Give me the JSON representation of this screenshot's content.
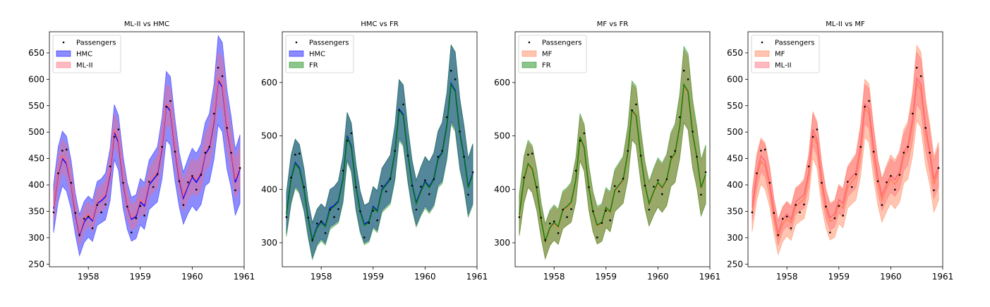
{
  "colors": {
    "HMC": "#0000ff",
    "ML-II": "#ff6675",
    "FR": "#008000",
    "MF": "#ff7f50",
    "points": "#000000"
  },
  "chart_data": [
    {
      "type": "line",
      "title": "ML-II vs HMC",
      "xlim": [
        1957.25,
        1961
      ],
      "ylim": [
        245,
        690
      ],
      "xticks": [
        "1958",
        "1959",
        "1960",
        "1961"
      ],
      "yticks": [
        "250",
        "300",
        "350",
        "400",
        "450",
        "500",
        "550",
        "600",
        "650"
      ],
      "legend": {
        "position": "top-left",
        "entries": [
          "Passengers",
          "HMC",
          "ML-II"
        ]
      },
      "series": [
        {
          "name": "HMC",
          "band_scale": 1.3
        },
        {
          "name": "ML-II",
          "band_scale": 0.75
        }
      ]
    },
    {
      "type": "line",
      "title": "HMC vs FR",
      "xlim": [
        1957.25,
        1961
      ],
      "ylim": [
        255,
        695
      ],
      "xticks": [
        "1958",
        "1959",
        "1960",
        "1961"
      ],
      "yticks": [
        "300",
        "400",
        "500",
        "600"
      ],
      "legend": {
        "position": "top-left",
        "entries": [
          "Passengers",
          "HMC",
          "FR"
        ]
      },
      "series": [
        {
          "name": "HMC",
          "band_scale": 1.1
        },
        {
          "name": "FR",
          "band_scale": 1.15
        }
      ]
    },
    {
      "type": "line",
      "title": "MF vs FR",
      "xlim": [
        1957.25,
        1961
      ],
      "ylim": [
        255,
        695
      ],
      "xticks": [
        "1958",
        "1959",
        "1960",
        "1961"
      ],
      "yticks": [
        "300",
        "400",
        "500",
        "600"
      ],
      "legend": {
        "position": "top-left",
        "entries": [
          "Passengers",
          "MF",
          "FR"
        ]
      },
      "series": [
        {
          "name": "MF",
          "band_scale": 1.05
        },
        {
          "name": "FR",
          "band_scale": 1.1
        }
      ]
    },
    {
      "type": "line",
      "title": "ML-II vs MF",
      "xlim": [
        1957.25,
        1961
      ],
      "ylim": [
        245,
        690
      ],
      "xticks": [
        "1958",
        "1959",
        "1960",
        "1961"
      ],
      "yticks": [
        "250",
        "300",
        "350",
        "400",
        "450",
        "500",
        "550",
        "600",
        "650"
      ],
      "legend": {
        "position": "top-left",
        "entries": [
          "Passengers",
          "MF",
          "ML-II"
        ]
      },
      "series": [
        {
          "name": "MF",
          "band_scale": 1.1
        },
        {
          "name": "ML-II",
          "band_scale": 0.75
        }
      ]
    }
  ],
  "observations": {
    "x": [
      1957.33,
      1957.42,
      1957.5,
      1957.58,
      1957.67,
      1957.75,
      1957.83,
      1957.92,
      1958.0,
      1958.08,
      1958.17,
      1958.25,
      1958.33,
      1958.42,
      1958.5,
      1958.58,
      1958.67,
      1958.75,
      1958.83,
      1958.92,
      1959.0,
      1959.08,
      1959.17,
      1959.25,
      1959.33,
      1959.42,
      1959.5,
      1959.58,
      1959.67,
      1959.75,
      1959.83,
      1959.92,
      1960.0,
      1960.08,
      1960.17,
      1960.25,
      1960.33,
      1960.42,
      1960.5,
      1960.58,
      1960.67,
      1960.75,
      1960.83,
      1960.92
    ],
    "passengers": [
      348,
      422,
      465,
      467,
      404,
      347,
      305,
      336,
      340,
      318,
      362,
      348,
      363,
      435,
      491,
      505,
      404,
      359,
      310,
      337,
      360,
      342,
      406,
      396,
      420,
      472,
      548,
      559,
      463,
      407,
      362,
      405,
      417,
      391,
      419,
      461,
      472,
      535,
      622,
      606,
      508,
      461,
      390,
      432
    ]
  },
  "predictions": {
    "HMC": [
      355,
      420,
      450,
      440,
      400,
      345,
      305,
      330,
      340,
      332,
      365,
      370,
      378,
      420,
      500,
      480,
      405,
      360,
      335,
      340,
      368,
      360,
      400,
      410,
      420,
      470,
      550,
      540,
      465,
      410,
      375,
      398,
      415,
      405,
      420,
      458,
      470,
      520,
      598,
      585,
      505,
      462,
      405,
      430
    ],
    "ML-II": [
      358,
      422,
      455,
      445,
      402,
      350,
      308,
      335,
      345,
      335,
      368,
      375,
      382,
      425,
      505,
      485,
      410,
      362,
      338,
      345,
      372,
      365,
      405,
      415,
      425,
      475,
      553,
      545,
      470,
      415,
      380,
      402,
      418,
      410,
      425,
      462,
      475,
      525,
      602,
      590,
      510,
      465,
      410,
      435
    ],
    "FR": [
      352,
      418,
      448,
      438,
      398,
      343,
      303,
      328,
      338,
      330,
      362,
      368,
      376,
      418,
      498,
      478,
      403,
      358,
      333,
      338,
      366,
      358,
      398,
      408,
      418,
      468,
      548,
      538,
      463,
      408,
      373,
      396,
      413,
      403,
      418,
      456,
      468,
      518,
      596,
      583,
      503,
      460,
      403,
      428
    ],
    "MF": [
      350,
      415,
      445,
      436,
      396,
      341,
      301,
      326,
      336,
      328,
      360,
      366,
      374,
      416,
      495,
      476,
      401,
      356,
      331,
      336,
      364,
      356,
      396,
      406,
      416,
      466,
      545,
      536,
      461,
      406,
      371,
      394,
      411,
      401,
      416,
      454,
      466,
      516,
      593,
      580,
      501,
      458,
      401,
      426
    ]
  },
  "band_half_width": [
    35,
    40,
    40,
    40,
    35,
    30,
    30,
    30,
    30,
    30,
    32,
    32,
    34,
    38,
    40,
    40,
    38,
    34,
    32,
    32,
    34,
    34,
    36,
    38,
    40,
    45,
    50,
    50,
    45,
    40,
    38,
    40,
    42,
    42,
    44,
    46,
    50,
    55,
    65,
    65,
    58,
    52,
    48,
    50
  ]
}
